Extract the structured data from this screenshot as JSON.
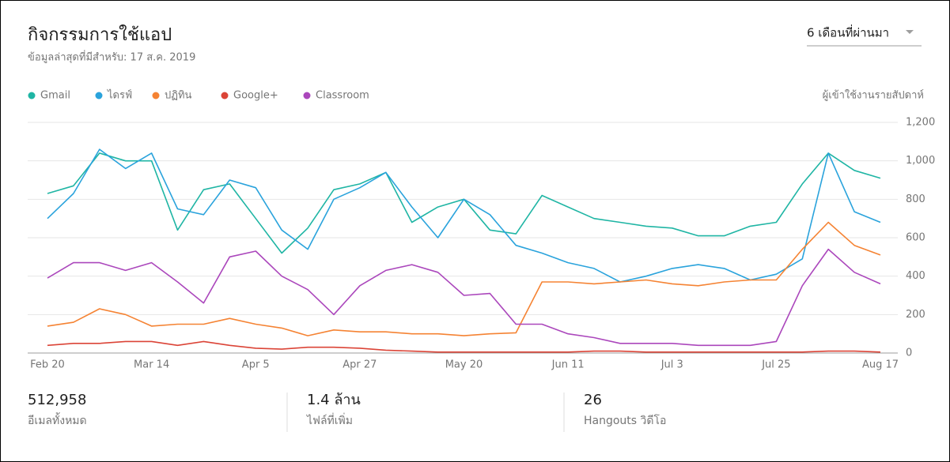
{
  "header": {
    "title": "กิจกรรมการใช้แอป",
    "subtitle": "ข้อมูลล่าสุดที่มีสำหรับ: 17 ส.ค. 2019",
    "period": "6 เดือนที่ผ่านมา"
  },
  "chart_data": {
    "type": "line",
    "y_axis_label": "ผู้เข้าใช้งานรายสัปดาห์",
    "categories": [
      "Feb 20",
      null,
      null,
      null,
      "Mar 14",
      null,
      null,
      null,
      "Apr 5",
      null,
      null,
      null,
      "Apr 27",
      null,
      null,
      null,
      "May 20",
      null,
      null,
      null,
      "Jun 11",
      null,
      null,
      null,
      "Jul 3",
      null,
      null,
      null,
      "Jul 25",
      null,
      null,
      null,
      "Aug 17"
    ],
    "series": [
      {
        "name": "Gmail",
        "color": "#1fb5a4",
        "values": [
          830,
          870,
          1040,
          1000,
          1000,
          640,
          850,
          880,
          700,
          520,
          650,
          850,
          880,
          940,
          680,
          760,
          800,
          640,
          620,
          820,
          760,
          700,
          680,
          660,
          650,
          610,
          610,
          660,
          680,
          880,
          1040,
          950,
          910
        ]
      },
      {
        "name": "ไดรฟ์",
        "color": "#2aa3dc",
        "values": [
          700,
          830,
          1060,
          960,
          1040,
          750,
          720,
          900,
          860,
          640,
          540,
          800,
          860,
          940,
          760,
          600,
          800,
          720,
          560,
          520,
          470,
          440,
          370,
          400,
          440,
          460,
          440,
          380,
          410,
          490,
          1040,
          735,
          680
        ]
      },
      {
        "name": "ปฏิทิน",
        "color": "#f58333",
        "values": [
          140,
          160,
          230,
          200,
          140,
          150,
          150,
          180,
          150,
          130,
          90,
          120,
          110,
          110,
          100,
          100,
          90,
          100,
          105,
          370,
          370,
          360,
          370,
          380,
          360,
          350,
          370,
          380,
          380,
          540,
          680,
          560,
          510
        ]
      },
      {
        "name": "Google+",
        "color": "#db4437",
        "values": [
          40,
          50,
          50,
          60,
          60,
          40,
          60,
          40,
          25,
          20,
          30,
          30,
          25,
          15,
          10,
          5,
          5,
          5,
          5,
          5,
          5,
          10,
          10,
          5,
          5,
          5,
          5,
          5,
          5,
          5,
          10,
          10,
          5
        ]
      },
      {
        "name": "Classroom",
        "color": "#ab47bc",
        "values": [
          390,
          470,
          470,
          430,
          470,
          370,
          260,
          500,
          530,
          400,
          330,
          200,
          350,
          430,
          460,
          420,
          300,
          310,
          150,
          150,
          100,
          80,
          50,
          50,
          50,
          40,
          40,
          40,
          60,
          350,
          540,
          420,
          360
        ]
      }
    ],
    "ylim": [
      0,
      1200
    ],
    "yticks": [
      0,
      200,
      400,
      600,
      800,
      {
        "value": 1000,
        "label": "1,000"
      },
      {
        "value": 1200,
        "label": "1,200"
      }
    ],
    "grid": true
  },
  "stats": [
    {
      "value": "512,958",
      "label": "อีเมลทั้งหมด"
    },
    {
      "value": "1.4 ล้าน",
      "label": "ไฟล์ที่เพิ่ม"
    },
    {
      "value": "26",
      "label": "Hangouts วิดีโอ"
    }
  ]
}
